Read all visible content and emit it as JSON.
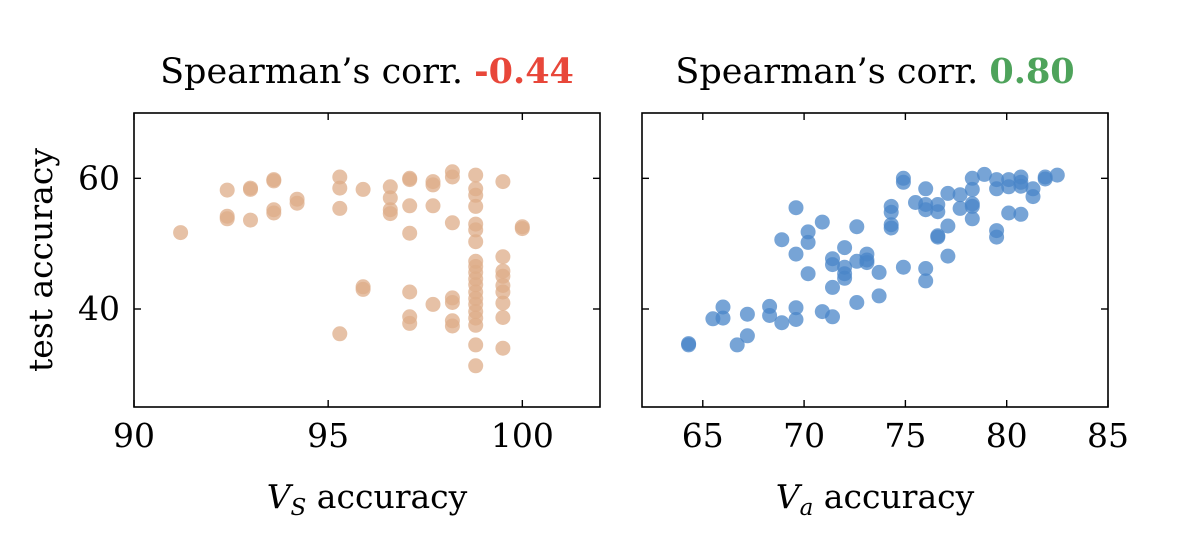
{
  "chart_data": [
    {
      "type": "scatter",
      "title_prefix": "Spearman’s corr.",
      "corr_value": "-0.44",
      "corr_color": "#e8473a",
      "point_color": "#deac88",
      "ylabel": "test accuracy",
      "xlabel_var": "V",
      "xlabel_sub": "S",
      "xlabel_rest": " accuracy",
      "xlim": [
        90,
        102
      ],
      "ylim": [
        25,
        70
      ],
      "xticks": [
        90,
        95,
        100
      ],
      "yticks": [
        40,
        60
      ],
      "grid": false,
      "points": [
        [
          91.2,
          51.7
        ],
        [
          92.4,
          58.2
        ],
        [
          92.4,
          54.2
        ],
        [
          92.4,
          53.8
        ],
        [
          93.0,
          58.5
        ],
        [
          93.0,
          58.3
        ],
        [
          93.0,
          53.6
        ],
        [
          93.6,
          59.8
        ],
        [
          93.6,
          59.6
        ],
        [
          93.6,
          55.2
        ],
        [
          93.6,
          54.7
        ],
        [
          94.2,
          56.8
        ],
        [
          94.2,
          56.2
        ],
        [
          95.3,
          60.2
        ],
        [
          95.3,
          58.5
        ],
        [
          95.3,
          55.4
        ],
        [
          95.3,
          36.2
        ],
        [
          95.9,
          58.3
        ],
        [
          95.9,
          43.4
        ],
        [
          95.9,
          43.0
        ],
        [
          96.6,
          58.7
        ],
        [
          96.6,
          57.0
        ],
        [
          96.6,
          55.2
        ],
        [
          96.6,
          54.6
        ],
        [
          97.1,
          60.0
        ],
        [
          97.1,
          59.8
        ],
        [
          97.1,
          55.8
        ],
        [
          97.1,
          51.6
        ],
        [
          97.1,
          42.6
        ],
        [
          97.1,
          38.8
        ],
        [
          97.1,
          37.8
        ],
        [
          97.7,
          59.5
        ],
        [
          97.7,
          59.0
        ],
        [
          97.7,
          55.8
        ],
        [
          97.7,
          40.7
        ],
        [
          98.2,
          61.0
        ],
        [
          98.2,
          60.2
        ],
        [
          98.2,
          53.2
        ],
        [
          98.2,
          41.7
        ],
        [
          98.2,
          41.0
        ],
        [
          98.2,
          38.2
        ],
        [
          98.2,
          37.4
        ],
        [
          98.8,
          60.5
        ],
        [
          98.8,
          58.4
        ],
        [
          98.8,
          57.4
        ],
        [
          98.8,
          55.7
        ],
        [
          98.8,
          53.0
        ],
        [
          98.8,
          52.1
        ],
        [
          98.8,
          50.3
        ],
        [
          98.8,
          47.3
        ],
        [
          98.8,
          46.5
        ],
        [
          98.8,
          45.6
        ],
        [
          98.8,
          44.6
        ],
        [
          98.8,
          43.7
        ],
        [
          98.8,
          42.6
        ],
        [
          98.8,
          41.6
        ],
        [
          98.8,
          40.7
        ],
        [
          98.8,
          39.6
        ],
        [
          98.8,
          38.6
        ],
        [
          98.8,
          37.5
        ],
        [
          98.8,
          34.5
        ],
        [
          98.8,
          31.3
        ],
        [
          99.5,
          59.5
        ],
        [
          99.5,
          48.0
        ],
        [
          99.5,
          45.8
        ],
        [
          99.5,
          45.0
        ],
        [
          99.5,
          43.6
        ],
        [
          99.5,
          42.6
        ],
        [
          99.5,
          40.9
        ],
        [
          99.5,
          38.7
        ],
        [
          99.5,
          34.0
        ],
        [
          100.0,
          52.6
        ],
        [
          100.0,
          52.3
        ]
      ]
    },
    {
      "type": "scatter",
      "title_prefix": "Spearman’s corr.",
      "corr_value": "0.80",
      "corr_color": "#4ea35b",
      "point_color": "#4a86c8",
      "xlabel_var": "V",
      "xlabel_sub": "a",
      "xlabel_rest": " accuracy",
      "xlim": [
        62,
        85
      ],
      "ylim": [
        25,
        70
      ],
      "xticks": [
        65,
        70,
        75,
        80,
        85
      ],
      "yticks": [
        40,
        60
      ],
      "grid": false,
      "points": [
        [
          64.3,
          34.7
        ],
        [
          64.3,
          34.5
        ],
        [
          65.5,
          38.5
        ],
        [
          66.0,
          40.3
        ],
        [
          66.0,
          38.6
        ],
        [
          66.7,
          34.5
        ],
        [
          67.2,
          39.2
        ],
        [
          67.2,
          35.9
        ],
        [
          68.3,
          40.4
        ],
        [
          68.3,
          39.0
        ],
        [
          68.9,
          50.6
        ],
        [
          68.9,
          37.9
        ],
        [
          69.6,
          55.5
        ],
        [
          69.6,
          48.4
        ],
        [
          69.6,
          40.2
        ],
        [
          69.6,
          38.4
        ],
        [
          70.2,
          51.8
        ],
        [
          70.2,
          50.2
        ],
        [
          70.2,
          45.4
        ],
        [
          70.9,
          53.3
        ],
        [
          70.9,
          39.6
        ],
        [
          71.4,
          47.7
        ],
        [
          71.4,
          46.8
        ],
        [
          71.4,
          43.3
        ],
        [
          71.4,
          38.8
        ],
        [
          72.0,
          49.4
        ],
        [
          72.0,
          46.4
        ],
        [
          72.0,
          45.4
        ],
        [
          72.0,
          44.7
        ],
        [
          72.6,
          52.6
        ],
        [
          72.6,
          47.3
        ],
        [
          72.6,
          41.0
        ],
        [
          73.1,
          48.4
        ],
        [
          73.1,
          47.5
        ],
        [
          73.1,
          47.1
        ],
        [
          73.7,
          45.6
        ],
        [
          73.7,
          42.0
        ],
        [
          74.3,
          55.7
        ],
        [
          74.3,
          54.8
        ],
        [
          74.3,
          52.9
        ],
        [
          74.3,
          52.4
        ],
        [
          74.9,
          60.0
        ],
        [
          74.9,
          59.4
        ],
        [
          74.9,
          46.4
        ],
        [
          75.5,
          56.3
        ],
        [
          76.0,
          58.4
        ],
        [
          76.0,
          56.0
        ],
        [
          76.0,
          55.2
        ],
        [
          76.0,
          46.2
        ],
        [
          76.0,
          44.3
        ],
        [
          76.6,
          56.0
        ],
        [
          76.6,
          54.9
        ],
        [
          76.6,
          51.2
        ],
        [
          76.6,
          51.0
        ],
        [
          77.1,
          57.7
        ],
        [
          77.1,
          52.7
        ],
        [
          77.1,
          48.1
        ],
        [
          77.7,
          57.5
        ],
        [
          77.7,
          55.4
        ],
        [
          78.3,
          60.0
        ],
        [
          78.3,
          58.3
        ],
        [
          78.3,
          56.1
        ],
        [
          78.3,
          55.7
        ],
        [
          78.3,
          53.8
        ],
        [
          78.9,
          60.6
        ],
        [
          79.5,
          59.8
        ],
        [
          79.5,
          58.4
        ],
        [
          79.5,
          52.0
        ],
        [
          79.5,
          51.0
        ],
        [
          80.1,
          59.8
        ],
        [
          80.1,
          58.7
        ],
        [
          80.1,
          54.7
        ],
        [
          80.7,
          60.2
        ],
        [
          80.7,
          59.4
        ],
        [
          80.7,
          58.8
        ],
        [
          80.7,
          54.5
        ],
        [
          81.3,
          58.4
        ],
        [
          81.3,
          57.2
        ],
        [
          81.9,
          60.2
        ],
        [
          81.9,
          59.9
        ],
        [
          82.5,
          60.5
        ]
      ]
    }
  ]
}
